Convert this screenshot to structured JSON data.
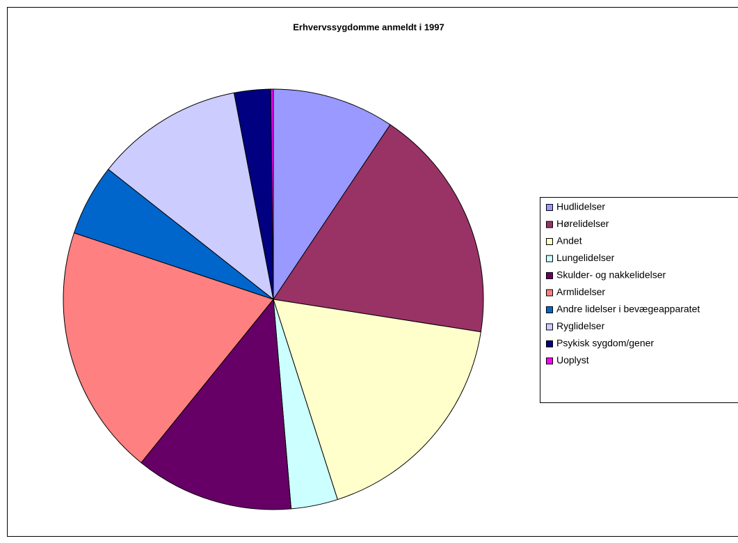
{
  "chart_data": {
    "type": "pie",
    "title": "Erhvervssygdomme anmeldt i 1997",
    "categories": [
      "Hudlidelser",
      "Hørelidelser",
      "Andet",
      "Lungelidelser",
      "Skulder- og nakkelidelser",
      "Armlidelser",
      "Andre lidelser i bevægeapparatet",
      "Ryglidelser",
      "Psykisk sygdom/gener",
      "Uoplyst"
    ],
    "values": [
      9.4,
      18.1,
      17.6,
      3.6,
      12.2,
      19.3,
      5.5,
      11.4,
      2.8,
      0.2
    ],
    "colors": [
      "#9999ff",
      "#993366",
      "#ffffcc",
      "#ccffff",
      "#660066",
      "#ff8080",
      "#0066cc",
      "#ccccff",
      "#000080",
      "#ff00ff"
    ],
    "legend": "right"
  }
}
